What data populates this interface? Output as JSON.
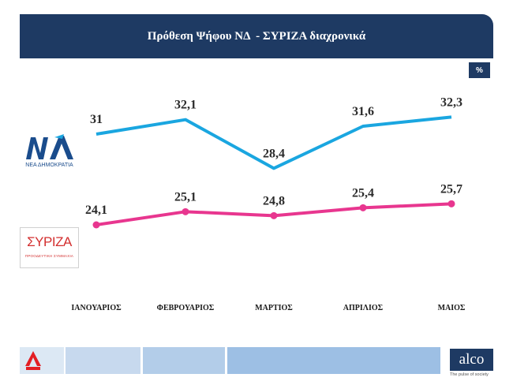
{
  "title": "Πρόθεση Ψήφου ΝΔ  - ΣΥΡΙΖΑ διαχρονικά",
  "unit": "%",
  "logos": {
    "nd_text": "ΝΕΑ ΔΗΜΟΚΡΑΤΙΑ",
    "nd_mark": "ΝΔ",
    "syriza_word": "ΣΥΡΙΖΑ",
    "syriza_sub": "ΠΡΟΟΔΕΥΤΙΚΗ ΣΥΜΜΑΧΙΑ",
    "alpha": "ALPHA",
    "alco": "alco",
    "alco_tagline": "The pulse of society"
  },
  "colors": {
    "nd": "#1aa6e0",
    "syriza": "#e8368f",
    "header": "#1e3a63"
  },
  "chart_data": {
    "type": "line",
    "title": "Πρόθεση Ψήφου ΝΔ  - ΣΥΡΙΖΑ διαχρονικά",
    "categories": [
      "ΙΑΝΟΥΑΡΙΟΣ",
      "ΦΕΒΡΟΥΑΡΙΟΣ",
      "ΜΑΡΤΙΟΣ",
      "ΑΠΡΙΛΙΟΣ",
      "ΜΑΙΟΣ"
    ],
    "series": [
      {
        "key": "nd",
        "values": [
          31,
          32.1,
          28.4,
          31.6,
          32.3
        ],
        "labels": [
          "31",
          "32,1",
          "28,4",
          "31,6",
          "32,3"
        ]
      },
      {
        "key": "syriza",
        "values": [
          24.1,
          25.1,
          24.8,
          25.4,
          25.7
        ],
        "labels": [
          "24,1",
          "25,1",
          "24,8",
          "25,4",
          "25,7"
        ]
      }
    ],
    "grid": false,
    "legend": "left (party logos)"
  }
}
